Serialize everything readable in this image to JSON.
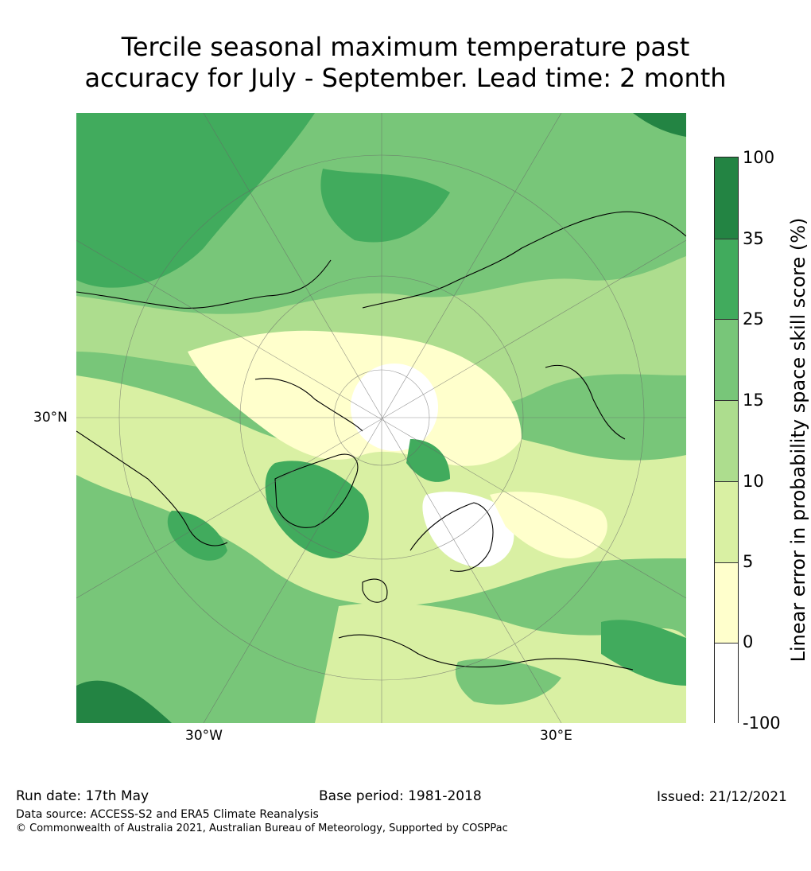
{
  "title_line1": "Tercile seasonal maximum temperature past",
  "title_line2": "accuracy for July - September. Lead time: 2 month",
  "map": {
    "projection": "polar stereographic (north)",
    "lat_label": "30°N",
    "lon_labels": [
      "30°W",
      "30°E"
    ],
    "colors": {
      "level_minus100_0": "#ffffff",
      "level_0_5": "#ffffcc",
      "level_5_10": "#d9f0a3",
      "level_10_15": "#addd8e",
      "level_15_25": "#78c679",
      "level_25_35": "#41ab5d",
      "level_35_100": "#238443",
      "coastline": "#000000",
      "graticule": "#666666"
    }
  },
  "colorbar": {
    "title": "Linear error in probability space skill score (%)",
    "ticks": [
      "100",
      "35",
      "25",
      "15",
      "10",
      "5",
      "0",
      "-100"
    ],
    "segments": [
      "#238443",
      "#41ab5d",
      "#78c679",
      "#addd8e",
      "#d9f0a3",
      "#ffffcc",
      "#ffffff"
    ]
  },
  "footer": {
    "run_date": "Run date: 17th May",
    "base_period": "Base period: 1981-2018",
    "issued": "Issued: 21/12/2021",
    "data_source": "Data source: ACCESS-S2 and ERA5 Climate Reanalysis",
    "copyright": "© Commonwealth of Australia 2021, Australian Bureau of Meteorology, Supported by COSPPac"
  }
}
